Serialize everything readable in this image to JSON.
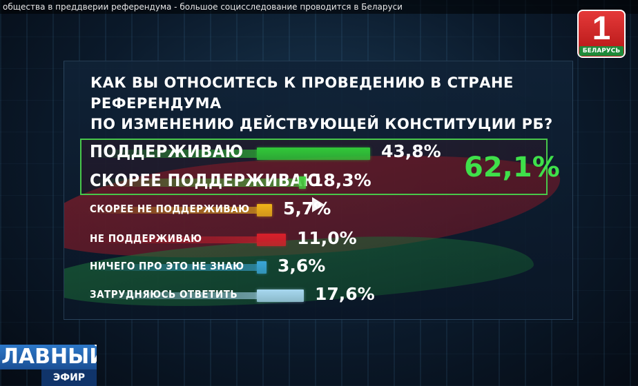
{
  "window": {
    "title": "общества в преддверии референдума - большое социсследование проводится в Беларуси"
  },
  "channel_logo": {
    "number": "1",
    "text": "БЕЛАРУСЬ"
  },
  "show_logo": {
    "line1": "ЛАВНЫЙ",
    "line2": "ЭФИР"
  },
  "chart_data": {
    "type": "bar",
    "title_line1": "КАК ВЫ ОТНОСИТЕСЬ К ПРОВЕДЕНИЮ В СТРАНЕ РЕФЕРЕНДУМА",
    "title_line2": "ПО ИЗМЕНЕНИЮ ДЕЙСТВУЮЩЕЙ КОНСТИТУЦИИ РБ?",
    "categories": [
      "ПОДДЕРЖИВАЮ",
      "СКОРЕЕ ПОДДЕРЖИВАЮ",
      "СКОРЕЕ НЕ ПОДДЕРЖИВАЮ",
      "НЕ ПОДДЕРЖИВАЮ",
      "НИЧЕГО ПРО ЭТО НЕ ЗНАЮ",
      "ЗАТРУДНЯЮСЬ ОТВЕТИТЬ"
    ],
    "values": [
      43.8,
      18.3,
      5.7,
      11.0,
      3.6,
      17.6
    ],
    "value_labels": [
      "43,8%",
      "18,3%",
      "5,7%",
      "11,0%",
      "3,6%",
      "17,6%"
    ],
    "colors": [
      "#31c838",
      "#46d040",
      "#f0b418",
      "#d8202a",
      "#3aa6d8",
      "#a8d8f0"
    ],
    "grouped_total": "62,1%",
    "grouped_total_value": 62.1
  }
}
